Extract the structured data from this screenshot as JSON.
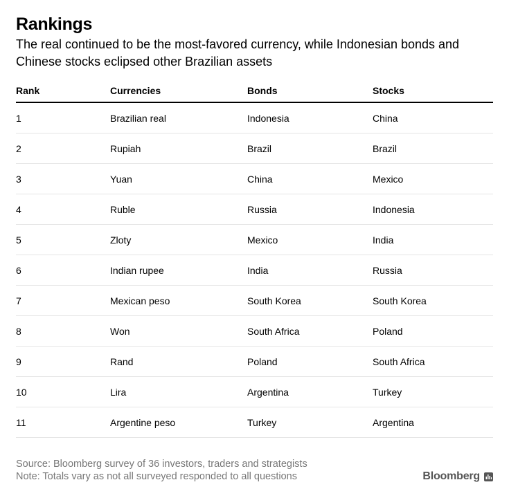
{
  "header": {
    "title": "Rankings",
    "subtitle": "The real continued to be the most-favored currency, while Indonesian bonds and Chinese stocks eclipsed other Brazilian assets"
  },
  "chart_data": {
    "type": "table",
    "columns": [
      "Rank",
      "Currencies",
      "Bonds",
      "Stocks"
    ],
    "rows": [
      [
        "1",
        "Brazilian real",
        "Indonesia",
        "China"
      ],
      [
        "2",
        "Rupiah",
        "Brazil",
        "Brazil"
      ],
      [
        "3",
        "Yuan",
        "China",
        "Mexico"
      ],
      [
        "4",
        "Ruble",
        "Russia",
        "Indonesia"
      ],
      [
        "5",
        "Zloty",
        "Mexico",
        "India"
      ],
      [
        "6",
        "Indian rupee",
        "India",
        "Russia"
      ],
      [
        "7",
        "Mexican peso",
        "South Korea",
        "South Korea"
      ],
      [
        "8",
        "Won",
        "South Africa",
        "Poland"
      ],
      [
        "9",
        "Rand",
        "Poland",
        "South Africa"
      ],
      [
        "10",
        "Lira",
        "Argentina",
        "Turkey"
      ],
      [
        "11",
        "Argentine peso",
        "Turkey",
        "Argentina"
      ]
    ]
  },
  "footer": {
    "source": "Source: Bloomberg survey of 36 investors, traders and strategists",
    "note": "Note: Totals vary as not all surveyed responded to all questions"
  },
  "logo": {
    "text": "Bloomberg",
    "icon": "bloomberg-chart-icon",
    "color": "#555555"
  },
  "colors": {
    "text": "#000000",
    "muted": "#777777",
    "rule": "#e5e5e5"
  }
}
